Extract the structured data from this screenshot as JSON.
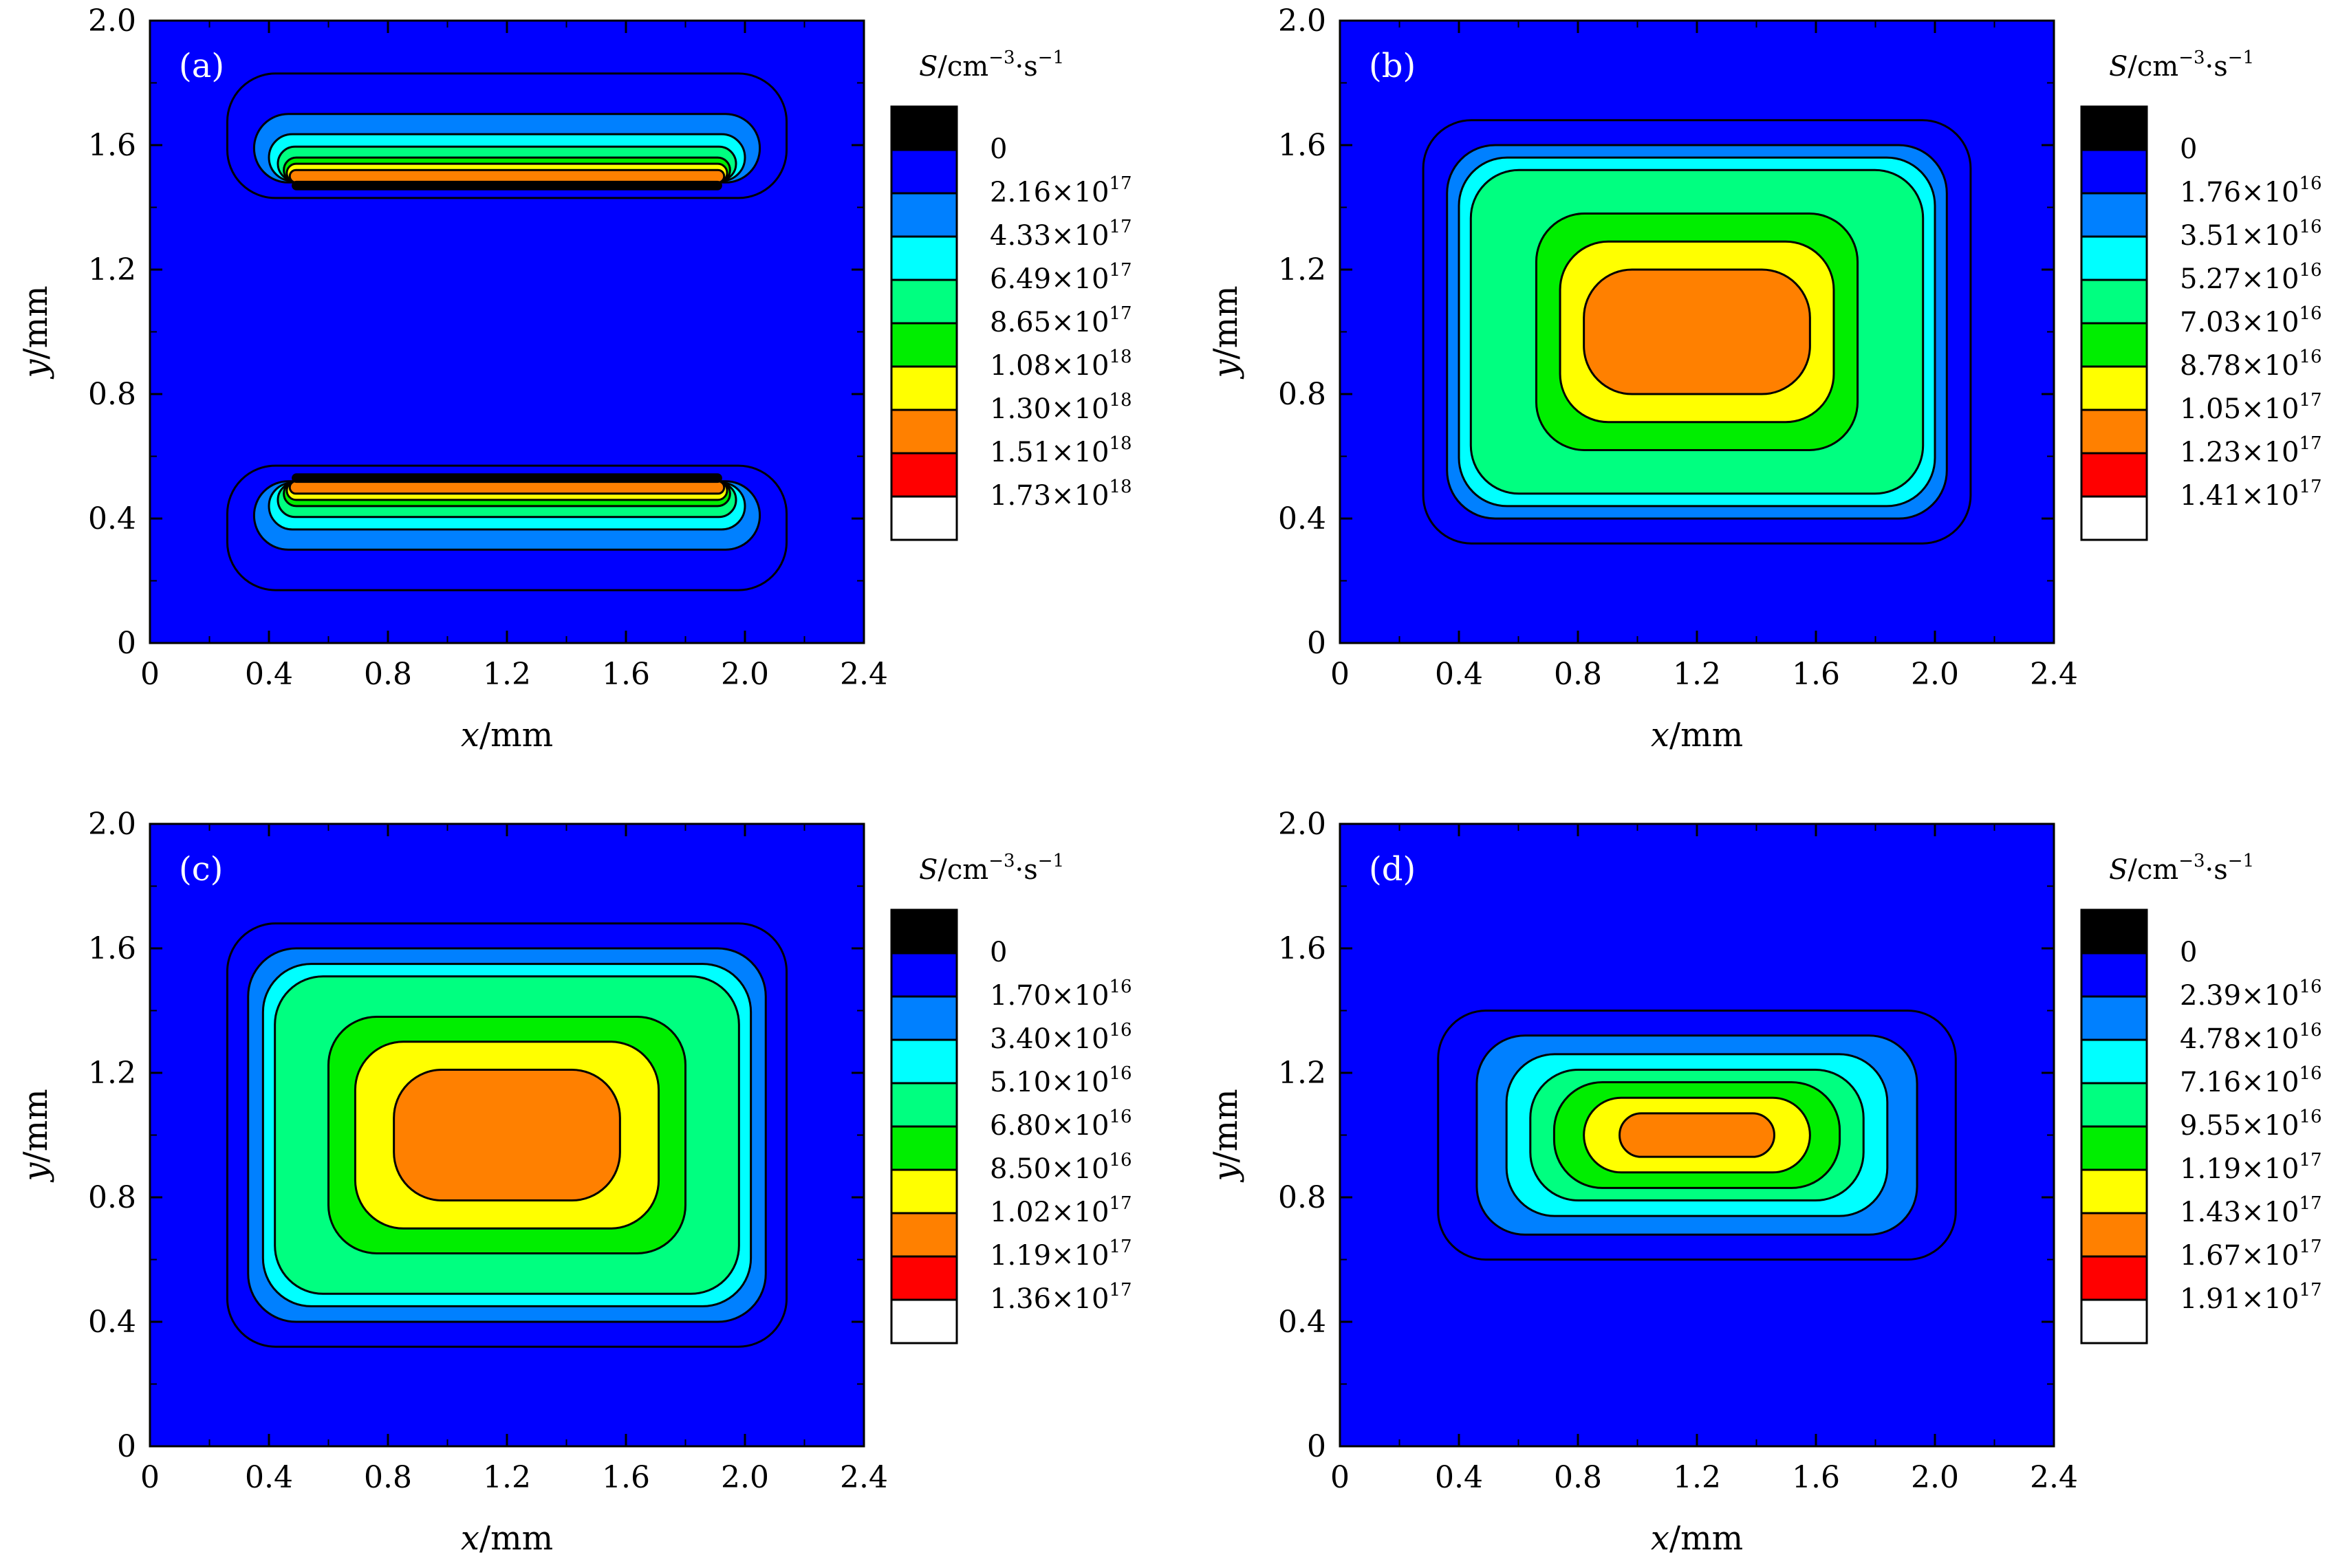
{
  "figure": {
    "colors": {
      "background": "#0000ff",
      "levels": [
        "#000000",
        "#0000ff",
        "#0080ff",
        "#00ffff",
        "#00ff80",
        "#00ee00",
        "#ffff00",
        "#ff8000",
        "#ff0000",
        "#ffffff"
      ]
    },
    "legend_title": {
      "symbol": "S",
      "unit_a": "/cm",
      "exp_a": "−3",
      "dot": "·s",
      "exp_b": "−1"
    },
    "level_zero_label": "0"
  },
  "chart_data": [
    {
      "type": "contour",
      "panel": "(a)",
      "xlabel": {
        "var": "x",
        "unit": "/mm"
      },
      "ylabel": {
        "var": "y",
        "unit": "/mm"
      },
      "xlim": [
        0,
        2.4
      ],
      "ylim": [
        0,
        2.0
      ],
      "xticks": [
        "0",
        "0.4",
        "0.8",
        "1.2",
        "1.6",
        "2.0",
        "2.4"
      ],
      "yticks": [
        "0",
        "0.4",
        "0.8",
        "1.2",
        "1.6",
        "2.0"
      ],
      "levels": [
        {
          "mant": "2.16",
          "exp": "17"
        },
        {
          "mant": "4.33",
          "exp": "17"
        },
        {
          "mant": "6.49",
          "exp": "17"
        },
        {
          "mant": "8.65",
          "exp": "17"
        },
        {
          "mant": "1.08",
          "exp": "18"
        },
        {
          "mant": "1.30",
          "exp": "18"
        },
        {
          "mant": "1.51",
          "exp": "18"
        },
        {
          "mant": "1.73",
          "exp": "18"
        }
      ],
      "regions": [
        {
          "level": 1,
          "cx": 1.2,
          "cy": 1.63,
          "hw": 0.94,
          "hh": 0.2
        },
        {
          "level": 2,
          "cx": 1.2,
          "cy": 1.59,
          "hw": 0.85,
          "hh": 0.11
        },
        {
          "level": 3,
          "cx": 1.2,
          "cy": 1.56,
          "hw": 0.8,
          "hh": 0.075
        },
        {
          "level": 4,
          "cx": 1.2,
          "cy": 1.54,
          "hw": 0.77,
          "hh": 0.055
        },
        {
          "level": 5,
          "cx": 1.2,
          "cy": 1.52,
          "hw": 0.75,
          "hh": 0.04
        },
        {
          "level": 6,
          "cx": 1.2,
          "cy": 1.51,
          "hw": 0.74,
          "hh": 0.03
        },
        {
          "level": 7,
          "cx": 1.2,
          "cy": 1.5,
          "hw": 0.73,
          "hh": 0.02
        },
        {
          "level": 0,
          "cx": 1.2,
          "cy": 1.47,
          "hw": 0.72,
          "hh": 0.012
        },
        {
          "level": 1,
          "cx": 1.2,
          "cy": 0.37,
          "hw": 0.94,
          "hh": 0.2
        },
        {
          "level": 2,
          "cx": 1.2,
          "cy": 0.41,
          "hw": 0.85,
          "hh": 0.11
        },
        {
          "level": 3,
          "cx": 1.2,
          "cy": 0.44,
          "hw": 0.8,
          "hh": 0.075
        },
        {
          "level": 4,
          "cx": 1.2,
          "cy": 0.46,
          "hw": 0.77,
          "hh": 0.055
        },
        {
          "level": 5,
          "cx": 1.2,
          "cy": 0.48,
          "hw": 0.75,
          "hh": 0.04
        },
        {
          "level": 6,
          "cx": 1.2,
          "cy": 0.49,
          "hw": 0.74,
          "hh": 0.03
        },
        {
          "level": 7,
          "cx": 1.2,
          "cy": 0.5,
          "hw": 0.73,
          "hh": 0.02
        },
        {
          "level": 0,
          "cx": 1.2,
          "cy": 0.53,
          "hw": 0.72,
          "hh": 0.012
        }
      ]
    },
    {
      "type": "contour",
      "panel": "(b)",
      "xlabel": {
        "var": "x",
        "unit": "/mm"
      },
      "ylabel": {
        "var": "y",
        "unit": "/mm"
      },
      "xlim": [
        0,
        2.4
      ],
      "ylim": [
        0,
        2.0
      ],
      "xticks": [
        "0",
        "0.4",
        "0.8",
        "1.2",
        "1.6",
        "2.0",
        "2.4"
      ],
      "yticks": [
        "0",
        "0.4",
        "0.8",
        "1.2",
        "1.6",
        "2.0"
      ],
      "levels": [
        {
          "mant": "1.76",
          "exp": "16"
        },
        {
          "mant": "3.51",
          "exp": "16"
        },
        {
          "mant": "5.27",
          "exp": "16"
        },
        {
          "mant": "7.03",
          "exp": "16"
        },
        {
          "mant": "8.78",
          "exp": "16"
        },
        {
          "mant": "1.05",
          "exp": "17"
        },
        {
          "mant": "1.23",
          "exp": "17"
        },
        {
          "mant": "1.41",
          "exp": "17"
        }
      ],
      "regions": [
        {
          "level": 1,
          "cx": 1.2,
          "cy": 1.0,
          "hw": 0.92,
          "hh": 0.68
        },
        {
          "level": 2,
          "cx": 1.2,
          "cy": 1.0,
          "hw": 0.84,
          "hh": 0.6
        },
        {
          "level": 3,
          "cx": 1.2,
          "cy": 1.0,
          "hw": 0.8,
          "hh": 0.56
        },
        {
          "level": 4,
          "cx": 1.2,
          "cy": 1.0,
          "hw": 0.76,
          "hh": 0.52
        },
        {
          "level": 5,
          "cx": 1.2,
          "cy": 1.0,
          "hw": 0.54,
          "hh": 0.38
        },
        {
          "level": 6,
          "cx": 1.2,
          "cy": 1.0,
          "hw": 0.46,
          "hh": 0.29
        },
        {
          "level": 7,
          "cx": 1.2,
          "cy": 1.0,
          "hw": 0.38,
          "hh": 0.2
        }
      ]
    },
    {
      "type": "contour",
      "panel": "(c)",
      "xlabel": {
        "var": "x",
        "unit": "/mm"
      },
      "ylabel": {
        "var": "y",
        "unit": "/mm"
      },
      "xlim": [
        0,
        2.4
      ],
      "ylim": [
        0,
        2.0
      ],
      "xticks": [
        "0",
        "0.4",
        "0.8",
        "1.2",
        "1.6",
        "2.0",
        "2.4"
      ],
      "yticks": [
        "0",
        "0.4",
        "0.8",
        "1.2",
        "1.6",
        "2.0"
      ],
      "levels": [
        {
          "mant": "1.70",
          "exp": "16"
        },
        {
          "mant": "3.40",
          "exp": "16"
        },
        {
          "mant": "5.10",
          "exp": "16"
        },
        {
          "mant": "6.80",
          "exp": "16"
        },
        {
          "mant": "8.50",
          "exp": "16"
        },
        {
          "mant": "1.02",
          "exp": "17"
        },
        {
          "mant": "1.19",
          "exp": "17"
        },
        {
          "mant": "1.36",
          "exp": "17"
        }
      ],
      "regions": [
        {
          "level": 1,
          "cx": 1.2,
          "cy": 1.0,
          "hw": 0.94,
          "hh": 0.68
        },
        {
          "level": 2,
          "cx": 1.2,
          "cy": 1.0,
          "hw": 0.87,
          "hh": 0.6
        },
        {
          "level": 3,
          "cx": 1.2,
          "cy": 1.0,
          "hw": 0.82,
          "hh": 0.55
        },
        {
          "level": 4,
          "cx": 1.2,
          "cy": 1.0,
          "hw": 0.78,
          "hh": 0.51
        },
        {
          "level": 5,
          "cx": 1.2,
          "cy": 1.0,
          "hw": 0.6,
          "hh": 0.38
        },
        {
          "level": 6,
          "cx": 1.2,
          "cy": 1.0,
          "hw": 0.51,
          "hh": 0.3
        },
        {
          "level": 7,
          "cx": 1.2,
          "cy": 1.0,
          "hw": 0.38,
          "hh": 0.21
        }
      ]
    },
    {
      "type": "contour",
      "panel": "(d)",
      "xlabel": {
        "var": "x",
        "unit": "/mm"
      },
      "ylabel": {
        "var": "y",
        "unit": "/mm"
      },
      "xlim": [
        0,
        2.4
      ],
      "ylim": [
        0,
        2.0
      ],
      "xticks": [
        "0",
        "0.4",
        "0.8",
        "1.2",
        "1.6",
        "2.0",
        "2.4"
      ],
      "yticks": [
        "0",
        "0.4",
        "0.8",
        "1.2",
        "1.6",
        "2.0"
      ],
      "levels": [
        {
          "mant": "2.39",
          "exp": "16"
        },
        {
          "mant": "4.78",
          "exp": "16"
        },
        {
          "mant": "7.16",
          "exp": "16"
        },
        {
          "mant": "9.55",
          "exp": "16"
        },
        {
          "mant": "1.19",
          "exp": "17"
        },
        {
          "mant": "1.43",
          "exp": "17"
        },
        {
          "mant": "1.67",
          "exp": "17"
        },
        {
          "mant": "1.91",
          "exp": "17"
        }
      ],
      "regions": [
        {
          "level": 1,
          "cx": 1.2,
          "cy": 1.0,
          "hw": 0.87,
          "hh": 0.4
        },
        {
          "level": 2,
          "cx": 1.2,
          "cy": 1.0,
          "hw": 0.74,
          "hh": 0.32
        },
        {
          "level": 3,
          "cx": 1.2,
          "cy": 1.0,
          "hw": 0.64,
          "hh": 0.26
        },
        {
          "level": 4,
          "cx": 1.2,
          "cy": 1.0,
          "hw": 0.56,
          "hh": 0.21
        },
        {
          "level": 5,
          "cx": 1.2,
          "cy": 1.0,
          "hw": 0.48,
          "hh": 0.17
        },
        {
          "level": 6,
          "cx": 1.2,
          "cy": 1.0,
          "hw": 0.38,
          "hh": 0.12
        },
        {
          "level": 7,
          "cx": 1.2,
          "cy": 1.0,
          "hw": 0.26,
          "hh": 0.07
        }
      ]
    }
  ]
}
